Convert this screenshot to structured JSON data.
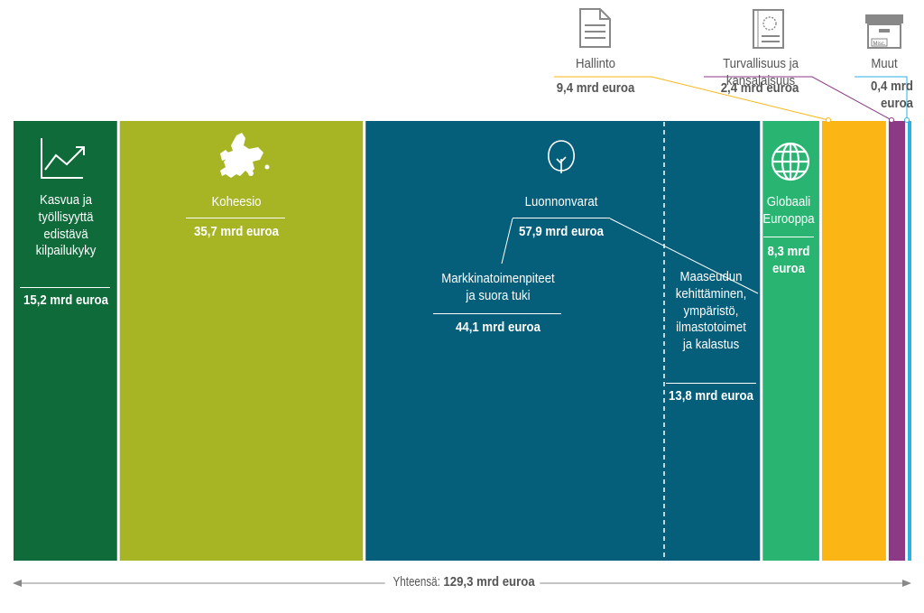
{
  "chart_data": {
    "type": "bar",
    "layout": "stacked-horizontal-proportional",
    "categories": [
      "Kasvua ja työllisyyttä edistävä kilpailukyky",
      "Koheesio",
      "Luonnonvarat",
      "Globaali Eurooppa",
      "Hallinto",
      "Turvallisuus ja kansalaisuus",
      "Muut"
    ],
    "values": [
      15.2,
      35.7,
      57.9,
      8.3,
      9.4,
      2.4,
      0.4
    ],
    "colors": [
      "#0f6b3a",
      "#a7b525",
      "#055e7a",
      "#29b472",
      "#fbb615",
      "#8c3a86",
      "#2cb1e4"
    ],
    "sub_segments": [
      {
        "parent": "Luonnonvarat",
        "name": "Markkinatoimenpiteet ja suora tuki",
        "value": 44.1
      },
      {
        "parent": "Luonnonvarat",
        "name": "Maaseudun kehittäminen, ympäristö, ilmastotoimet ja kalastus",
        "value": 13.8
      }
    ],
    "total": 129.3,
    "unit": "mrd euroa"
  },
  "labels": {
    "kasvu": {
      "name_lines": [
        "Kasvua ja",
        "työllisyyttä",
        "edistävä",
        "kilpailukyky"
      ],
      "value": "15,2 mrd euroa",
      "icon": "line-chart-icon"
    },
    "koheesio": {
      "name": "Koheesio",
      "value": "35,7 mrd euroa",
      "icon": "europe-map-icon"
    },
    "luonnonvarat": {
      "name": "Luonnonvarat",
      "value": "57,9 mrd euroa",
      "icon": "tree-icon"
    },
    "markkina": {
      "name_lines": [
        "Markkinatoimenpiteet",
        "ja suora tuki"
      ],
      "value": "44,1 mrd euroa"
    },
    "maaseutu": {
      "name_lines": [
        "Maaseudun",
        "kehittäminen,",
        "ympäristö,",
        "ilmastotoimet",
        "ja kalastus"
      ],
      "value": "13,8 mrd euroa"
    },
    "globaali": {
      "name_lines": [
        "Globaali",
        "Eurooppa"
      ],
      "value_lines": [
        "8,3 mrd",
        "euroa"
      ],
      "icon": "globe-icon"
    },
    "hallinto": {
      "name": "Hallinto",
      "value": "9,4 mrd euroa",
      "icon": "document-icon"
    },
    "turvallisuus": {
      "name": "Turvallisuus ja kansalaisuus",
      "value": "2,4 mrd euroa",
      "icon": "passport-icon"
    },
    "muut": {
      "name": "Muut",
      "value_lines": [
        "0,4 mrd",
        "euroa"
      ],
      "icon": "archive-box-icon",
      "box_text": "Misc."
    }
  },
  "total_label": {
    "prefix": "Yhteensä: ",
    "value": "129,3 mrd euroa"
  }
}
